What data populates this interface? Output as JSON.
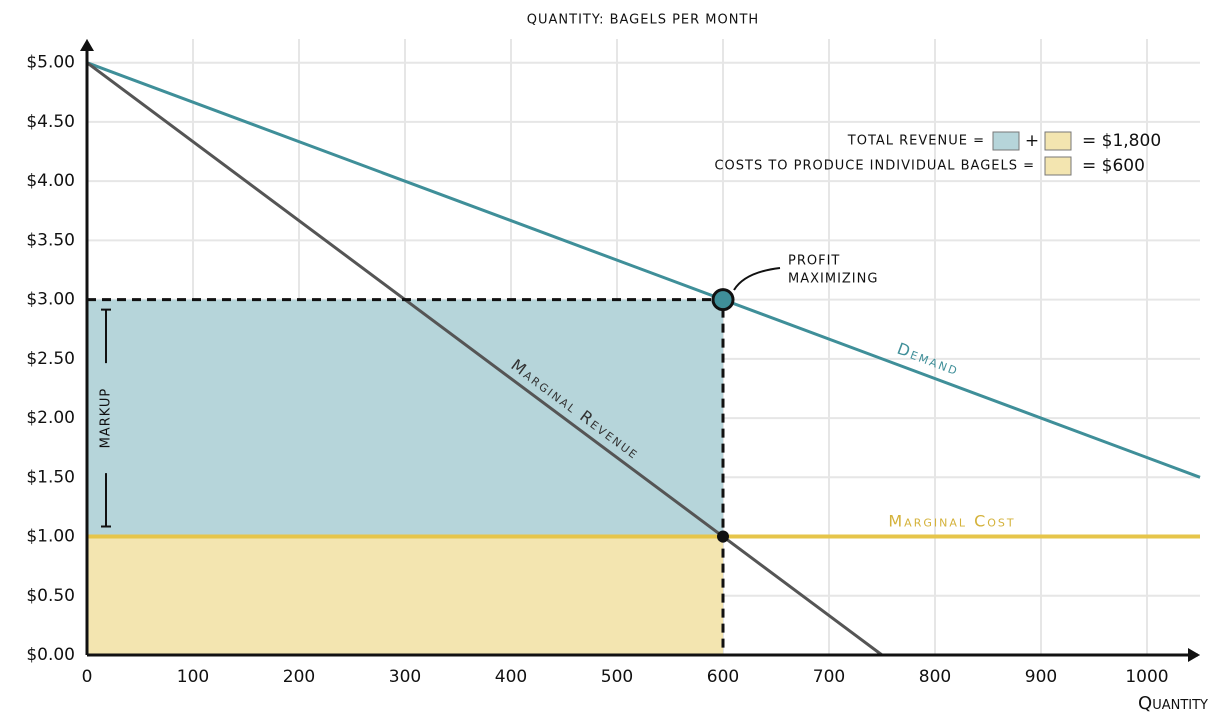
{
  "chart_data": {
    "type": "line",
    "title": "QUANTITY: BAGELS PER MONTH",
    "x_label": "Quantity",
    "xlim": [
      0,
      1050
    ],
    "ylim": [
      0,
      5.2
    ],
    "xticks": [
      0,
      100,
      200,
      300,
      400,
      500,
      600,
      700,
      800,
      900,
      1000
    ],
    "yticks": [
      {
        "value": 0,
        "label": "$0.00"
      },
      {
        "value": 0.5,
        "label": "$0.50"
      },
      {
        "value": 1,
        "label": "$1.00"
      },
      {
        "value": 1.5,
        "label": "$1.50"
      },
      {
        "value": 2,
        "label": "$2.00"
      },
      {
        "value": 2.5,
        "label": "$2.50"
      },
      {
        "value": 3,
        "label": "$3.00"
      },
      {
        "value": 3.5,
        "label": "$3.50"
      },
      {
        "value": 4,
        "label": "$4.00"
      },
      {
        "value": 4.5,
        "label": "$4.50"
      },
      {
        "value": 5,
        "label": "$5.00"
      }
    ],
    "grid": true,
    "series": [
      {
        "name": "Demand",
        "color": "#3f8f99",
        "x": [
          0,
          1050
        ],
        "values": [
          5,
          1.5
        ]
      },
      {
        "name": "Marginal Revenue",
        "color": "#555555",
        "x": [
          0,
          750
        ],
        "values": [
          5,
          0
        ]
      },
      {
        "name": "Marginal Cost",
        "color": "#e6c54a",
        "x": [
          0,
          1050
        ],
        "values": [
          1,
          1
        ]
      }
    ],
    "regions": [
      {
        "color": "#b6d5da",
        "xlim": [
          0,
          600
        ],
        "ylim": [
          1,
          3
        ]
      },
      {
        "color": "#f3e5b0",
        "xlim": [
          0,
          600
        ],
        "ylim": [
          0,
          1
        ]
      }
    ],
    "points": [
      {
        "x": 600,
        "y": 3,
        "color": "#3f8f99"
      },
      {
        "x": 600,
        "y": 1,
        "color": "#111111"
      }
    ],
    "annotations": {
      "profit": [
        "PROFIT",
        "MAXIMIZING"
      ],
      "markup": "MARKUP"
    },
    "legend": {
      "revenue_label": "TOTAL REVENUE =",
      "plus": "+",
      "revenue_value": "= $1,800",
      "cost_label": "COSTS TO PRODUCE INDIVIDUAL BAGELS =",
      "cost_value": "= $600"
    }
  }
}
